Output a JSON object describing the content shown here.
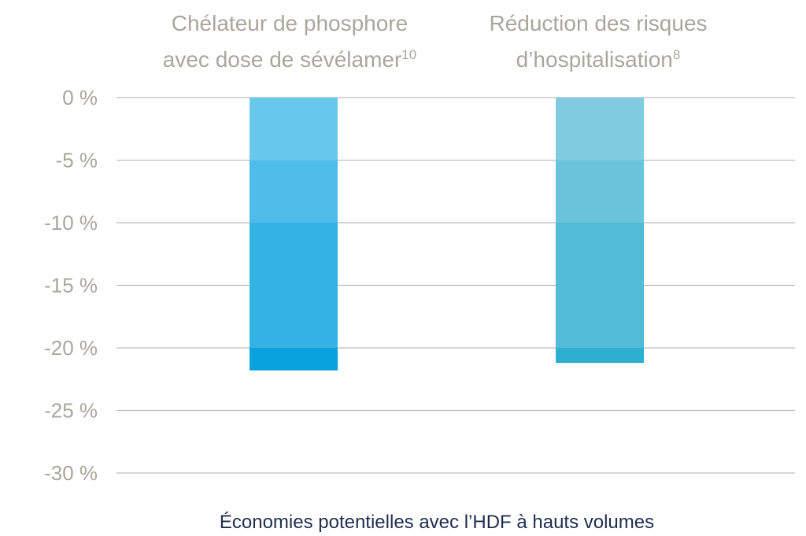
{
  "chart_data": {
    "type": "bar",
    "categories": [
      {
        "line1": "Chélateur de phosphore",
        "line2": "avec dose de sévélamer",
        "sup": "10"
      },
      {
        "line1": "Réduction des risques",
        "line2": "d’hospitalisation",
        "sup": "8"
      }
    ],
    "values": [
      -21.8,
      -21.2
    ],
    "yticks": [
      "0 %",
      "-5 %",
      "-10 %",
      "-15 %",
      "-20 %",
      "-25 %",
      "-30 %"
    ],
    "ytick_values": [
      0,
      -5,
      -10,
      -15,
      -20,
      -25,
      -30
    ],
    "ylim": [
      -30,
      0
    ],
    "xlabel": "Économies potentielles avec l’HDF à hauts volumes",
    "ylabel": "",
    "title": "",
    "grid": true,
    "colors": {
      "bar1_bands": [
        "#67c8ec",
        "#4fbde9",
        "#32b3e4",
        "#0aa2dc"
      ],
      "bar2_bands": [
        "#80cbe0",
        "#68c3db",
        "#52bbd6",
        "#2fafd0"
      ],
      "text_muted": "#aaa69d",
      "text_dark": "#1f2d4e",
      "grid": "#bdbdbd"
    }
  }
}
